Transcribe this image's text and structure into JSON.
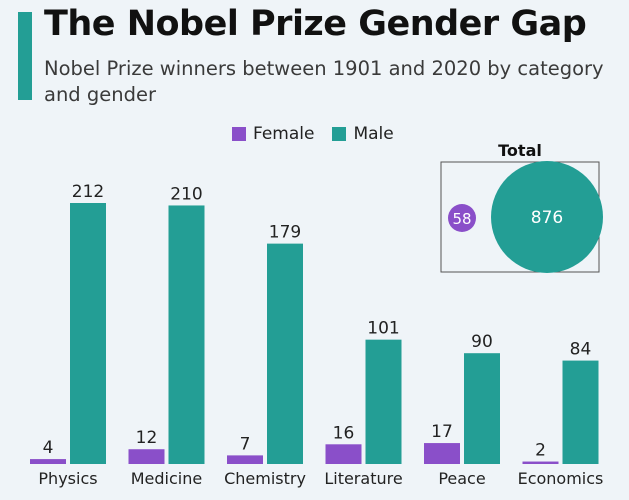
{
  "header": {
    "title": "The Nobel Prize Gender Gap",
    "subtitle": "Nobel Prize winners between 1901 and 2020 by category and gender"
  },
  "legend": {
    "items": [
      {
        "label": "Female",
        "color": "#8a4fc9"
      },
      {
        "label": "Male",
        "color": "#239e95"
      }
    ]
  },
  "total_panel": {
    "title": "Total",
    "female_value": "58",
    "male_value": "876"
  },
  "colors": {
    "female": "#8a4fc9",
    "male": "#239e95",
    "accent": "#239e95",
    "background": "#eff4f8"
  },
  "chart_data": {
    "type": "bar",
    "title": "The Nobel Prize Gender Gap",
    "subtitle": "Nobel Prize winners between 1901 and 2020 by category and gender",
    "categories": [
      "Physics",
      "Medicine",
      "Chemistry",
      "Literature",
      "Peace",
      "Economics"
    ],
    "series": [
      {
        "name": "Female",
        "values": [
          4,
          12,
          7,
          16,
          17,
          2
        ]
      },
      {
        "name": "Male",
        "values": [
          212,
          210,
          179,
          101,
          90,
          84
        ]
      }
    ],
    "ylim": [
      0,
      212
    ],
    "grid": false,
    "legend_position": "top",
    "totals": {
      "Female": 58,
      "Male": 876
    }
  }
}
